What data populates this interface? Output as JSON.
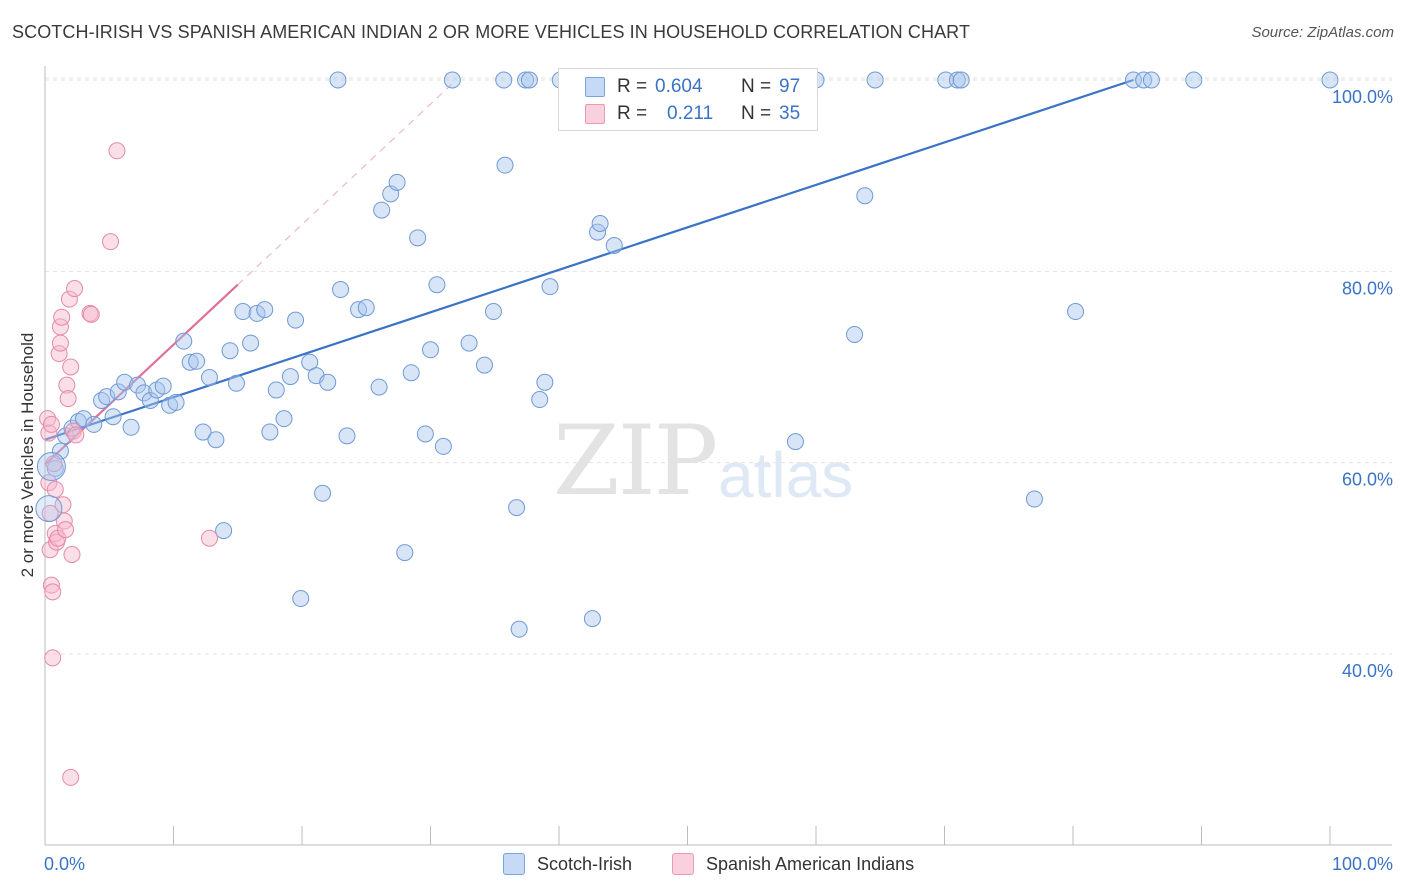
{
  "title": "SCOTCH-IRISH VS SPANISH AMERICAN INDIAN 2 OR MORE VEHICLES IN HOUSEHOLD CORRELATION CHART",
  "source": "Source: ZipAtlas.com",
  "watermark": {
    "zip": "ZIP",
    "atlas": "atlas"
  },
  "legend": {
    "r_label": "R =",
    "n_label": "N =",
    "series": [
      {
        "name": "Scotch-Irish",
        "r": "0.604",
        "n": "97",
        "fill": "#a9c6ee",
        "stroke": "#6f9ad6"
      },
      {
        "name": "Spanish American Indians",
        "r": "0.211",
        "n": "35",
        "fill": "#f6b9cc",
        "stroke": "#e58aa8"
      }
    ]
  },
  "chart_data": {
    "type": "scatter",
    "title": "SCOTCH-IRISH VS SPANISH AMERICAN INDIAN 2 OR MORE VEHICLES IN HOUSEHOLD CORRELATION CHART",
    "xlabel": "",
    "ylabel": "2 or more Vehicles in Household",
    "xlim": [
      0,
      100
    ],
    "ylim": [
      20,
      102
    ],
    "x_tick_labels": [
      "0.0%",
      "100.0%"
    ],
    "y_ticks": [
      40,
      60,
      80,
      100
    ],
    "y_tick_labels": [
      "40.0%",
      "60.0%",
      "80.0%",
      "100.0%"
    ],
    "grid": true,
    "legend_position": "top-center",
    "colors": {
      "blue": "#3a73c6",
      "pink": "#e0709a",
      "axis_label": "#3a73c6"
    },
    "series": [
      {
        "name": "Scotch-Irish",
        "points": [
          [
            0.8,
            59.4
          ],
          [
            1.2,
            61.2
          ],
          [
            1.6,
            62.8
          ],
          [
            2.1,
            63.6
          ],
          [
            2.6,
            64.3
          ],
          [
            3.0,
            64.6
          ],
          [
            3.8,
            64.0
          ],
          [
            4.4,
            66.5
          ],
          [
            4.8,
            66.9
          ],
          [
            5.3,
            64.8
          ],
          [
            5.7,
            67.4
          ],
          [
            6.2,
            68.4
          ],
          [
            6.7,
            63.7
          ],
          [
            7.2,
            68.1
          ],
          [
            7.7,
            67.3
          ],
          [
            8.2,
            66.5
          ],
          [
            8.7,
            67.6
          ],
          [
            9.2,
            68.0
          ],
          [
            9.7,
            66.0
          ],
          [
            10.2,
            66.3
          ],
          [
            10.8,
            72.7
          ],
          [
            11.3,
            70.5
          ],
          [
            11.8,
            70.6
          ],
          [
            12.3,
            63.2
          ],
          [
            12.8,
            68.9
          ],
          [
            13.3,
            62.4
          ],
          [
            13.9,
            52.9
          ],
          [
            14.4,
            71.7
          ],
          [
            14.9,
            68.3
          ],
          [
            15.4,
            75.8
          ],
          [
            16.0,
            72.5
          ],
          [
            16.5,
            75.6
          ],
          [
            17.1,
            76.0
          ],
          [
            17.5,
            63.2
          ],
          [
            18.0,
            67.6
          ],
          [
            18.6,
            64.6
          ],
          [
            19.1,
            69.0
          ],
          [
            19.5,
            74.9
          ],
          [
            19.9,
            45.8
          ],
          [
            20.6,
            70.5
          ],
          [
            21.1,
            69.1
          ],
          [
            21.6,
            56.8
          ],
          [
            22.0,
            68.4
          ],
          [
            23.0,
            78.1
          ],
          [
            23.5,
            62.8
          ],
          [
            24.4,
            76.0
          ],
          [
            25.0,
            76.2
          ],
          [
            26.0,
            67.9
          ],
          [
            26.2,
            86.4
          ],
          [
            26.9,
            88.1
          ],
          [
            27.4,
            89.3
          ],
          [
            28.0,
            50.6
          ],
          [
            28.5,
            69.4
          ],
          [
            29.0,
            83.5
          ],
          [
            29.6,
            63.0
          ],
          [
            30.0,
            71.8
          ],
          [
            30.5,
            78.6
          ],
          [
            31.0,
            61.7
          ],
          [
            33.0,
            72.5
          ],
          [
            34.2,
            70.2
          ],
          [
            34.9,
            75.8
          ],
          [
            35.8,
            91.1
          ],
          [
            36.7,
            55.3
          ],
          [
            36.9,
            42.6
          ],
          [
            38.5,
            66.6
          ],
          [
            38.9,
            68.4
          ],
          [
            39.3,
            78.4
          ],
          [
            42.6,
            43.7
          ],
          [
            43.0,
            84.1
          ],
          [
            43.2,
            85.0
          ],
          [
            44.3,
            82.7
          ],
          [
            58.4,
            62.2
          ],
          [
            63.0,
            73.4
          ],
          [
            63.8,
            87.9
          ],
          [
            77.0,
            56.2
          ],
          [
            80.2,
            75.8
          ],
          [
            22.8,
            100.0
          ],
          [
            31.7,
            100.0
          ],
          [
            35.7,
            100.0
          ],
          [
            37.4,
            100.0
          ],
          [
            37.7,
            100.0
          ],
          [
            40.1,
            100.0
          ],
          [
            40.6,
            100.0
          ],
          [
            41.3,
            100.0
          ],
          [
            45.3,
            100.0
          ],
          [
            58.9,
            100.0
          ],
          [
            59.2,
            100.0
          ],
          [
            60.0,
            100.0
          ],
          [
            64.6,
            100.0
          ],
          [
            70.1,
            100.0
          ],
          [
            71.0,
            100.0
          ],
          [
            71.3,
            100.0
          ],
          [
            84.7,
            100.0
          ],
          [
            85.5,
            100.0
          ],
          [
            86.1,
            100.0
          ],
          [
            89.4,
            100.0
          ],
          [
            100.0,
            100.0
          ]
        ]
      },
      {
        "name": "Spanish American Indians",
        "points": [
          [
            0.2,
            64.6
          ],
          [
            0.3,
            63.1
          ],
          [
            0.3,
            57.9
          ],
          [
            0.4,
            54.7
          ],
          [
            0.4,
            50.9
          ],
          [
            0.5,
            47.2
          ],
          [
            0.6,
            46.5
          ],
          [
            0.6,
            39.6
          ],
          [
            0.7,
            59.9
          ],
          [
            0.8,
            57.2
          ],
          [
            0.8,
            52.6
          ],
          [
            0.9,
            51.7
          ],
          [
            1.0,
            52.1
          ],
          [
            1.1,
            71.4
          ],
          [
            1.2,
            74.2
          ],
          [
            1.2,
            72.5
          ],
          [
            1.3,
            75.2
          ],
          [
            1.4,
            55.6
          ],
          [
            1.5,
            53.9
          ],
          [
            1.6,
            53.0
          ],
          [
            1.7,
            68.1
          ],
          [
            1.8,
            66.7
          ],
          [
            1.9,
            77.1
          ],
          [
            2.0,
            70.0
          ],
          [
            2.0,
            27.1
          ],
          [
            2.1,
            50.4
          ],
          [
            2.2,
            63.3
          ],
          [
            2.3,
            78.2
          ],
          [
            2.4,
            62.9
          ],
          [
            3.5,
            75.6
          ],
          [
            3.6,
            75.5
          ],
          [
            5.1,
            83.1
          ],
          [
            5.6,
            92.6
          ],
          [
            12.8,
            52.1
          ],
          [
            0.5,
            64.0
          ]
        ]
      }
    ],
    "trendlines": [
      {
        "series": "Scotch-Irish",
        "from": [
          0,
          62.4
        ],
        "to": [
          84.7,
          100.0
        ]
      },
      {
        "series": "Spanish American Indians",
        "from": [
          0,
          59.8
        ],
        "to": [
          15.0,
          78.6
        ],
        "dashed_extension_to": [
          32.0,
          100.0
        ]
      }
    ]
  }
}
